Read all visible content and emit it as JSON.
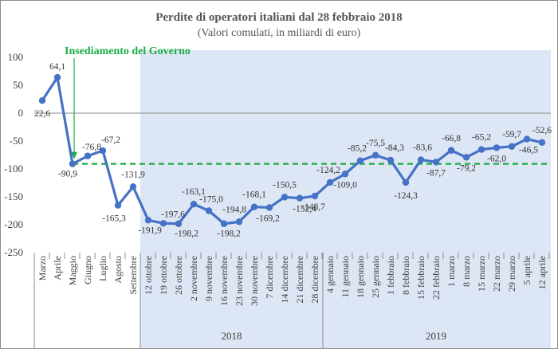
{
  "chart_data": {
    "type": "line",
    "title": "Perdite di operatori italiani  dal 28 febbraio 2018",
    "subtitle": "(Valori comulati, in miliardi di euro)",
    "ylim": [
      -250,
      100
    ],
    "yticks": [
      "100",
      "50",
      "0",
      "-50",
      "-100",
      "-150",
      "-200",
      "-250"
    ],
    "categories": [
      "Marzo",
      "Aprile",
      "Maggio",
      "Giugno",
      "Luglio",
      "Agosto",
      "Settembre",
      "12 ottobre",
      "19 ottobre",
      "26 ottobre",
      "2 novembre",
      "9 novembre",
      "16 novembre",
      "23 novembre",
      "30 novembre",
      "7 dicembre",
      "14 dicembre",
      "21 dicembre",
      "28 dicembre",
      "4 gennaio",
      "11 gennaio",
      "18 gennaio",
      "25 gennaio",
      "1 febbraio",
      "8 febbraio",
      "15 febbraio",
      "22 febbraio",
      "1 marzo",
      "8 marzo",
      "15 marzo",
      "22 marzo",
      "29 marzo",
      "5 aprile",
      "12 aprile"
    ],
    "values": [
      22.6,
      64.1,
      -90.9,
      -76.8,
      -67.2,
      -165.3,
      -131.9,
      -191.9,
      -197.6,
      -198.2,
      -163.1,
      -175.0,
      -198.2,
      -194.8,
      -168.1,
      -169.2,
      -150.5,
      -152.4,
      -148.7,
      -124.2,
      -109.0,
      -85.2,
      -75.5,
      -84.3,
      -124.3,
      -83.6,
      -87.7,
      -66.8,
      -79.2,
      -65.2,
      -62.0,
      -59.7,
      -46.5,
      -52.6
    ],
    "data_labels": [
      "22,6",
      "64,1",
      "-90,9",
      "-76,8",
      "-67,2",
      "-165,3",
      "-131,9",
      "-191,9",
      "-197,6",
      "-198,2",
      "-163,1",
      "-175,0",
      "-198,2",
      "-194,8",
      "-168,1",
      "-169,2",
      "-150,5",
      "-152,4",
      "-148,7",
      "-124,2",
      "-109,0",
      "-85,2",
      "-75,5",
      "-84,3",
      "-124,3",
      "-83,6",
      "-87,7",
      "-66,8",
      "-79,2",
      "-65,2",
      "-62,0",
      "-59,7",
      "-46,5",
      "-52,6"
    ],
    "reference_line": {
      "value": -90.9,
      "style": "dashed",
      "color": "#1aae45"
    },
    "annotation": {
      "text": "Insediamento del Governo",
      "category": "Maggio",
      "color": "#1aae45"
    },
    "shaded_region": {
      "from": "Settembre",
      "to": "12 aprile",
      "color": "#dde6f4"
    },
    "year_groups": [
      {
        "label": "2018",
        "from": "12 ottobre",
        "to": "28 dicembre"
      },
      {
        "label": "2019",
        "from": "4 gennaio",
        "to": "12 aprile"
      }
    ],
    "line_color": "#4472c4",
    "grid": false
  }
}
